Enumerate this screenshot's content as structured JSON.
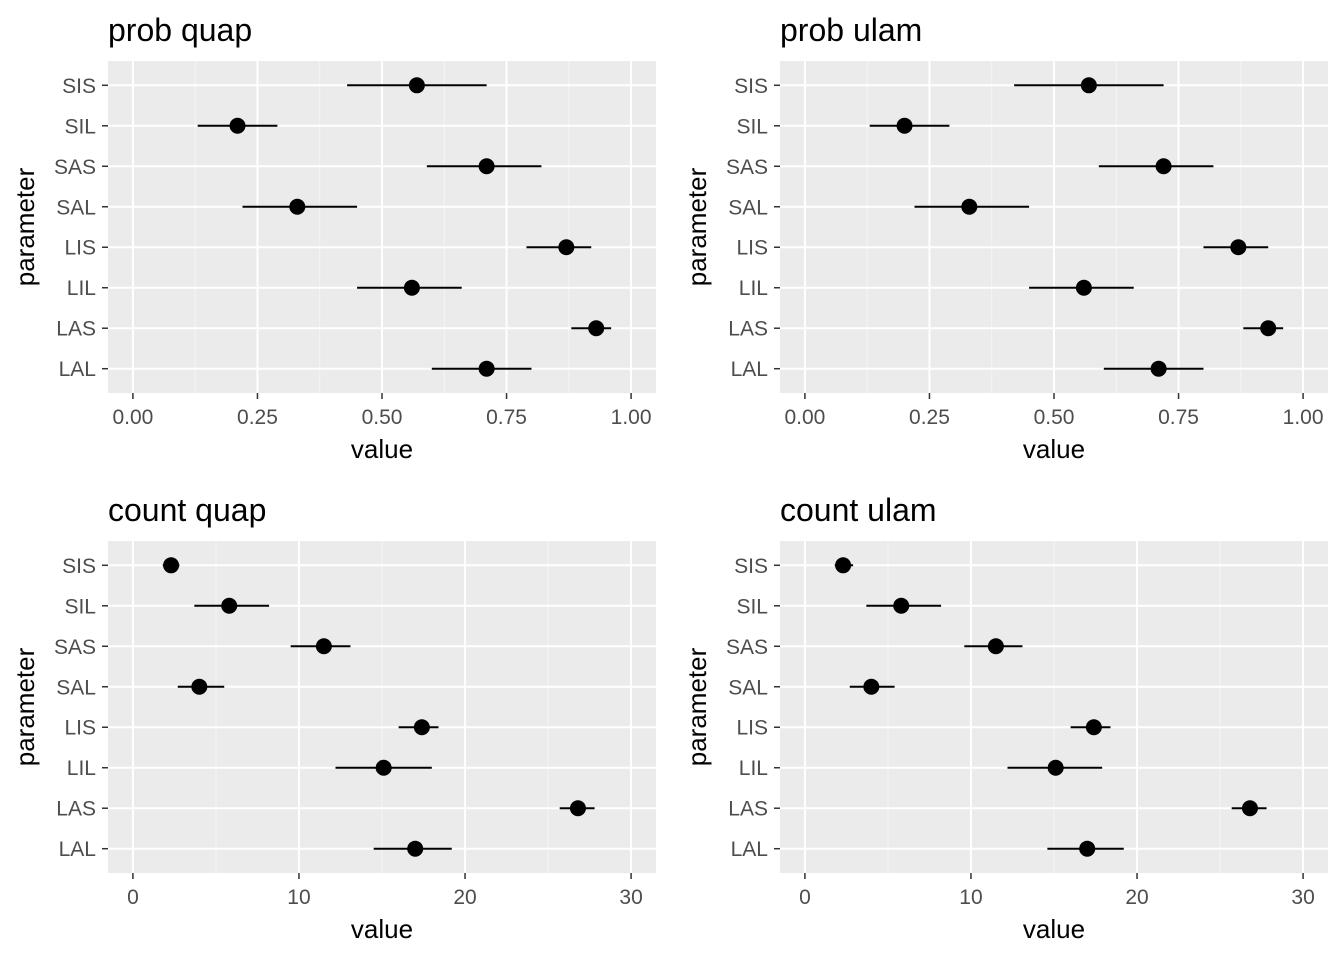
{
  "chart_data": [
    {
      "type": "scatter",
      "title": "prob quap",
      "xlabel": "value",
      "ylabel": "parameter",
      "xlim": [
        -0.05,
        1.05
      ],
      "xticks": [
        0,
        0.25,
        0.5,
        0.75,
        1
      ],
      "xtick_labels": [
        "0.00",
        "0.25",
        "0.50",
        "0.75",
        "1.00"
      ],
      "categories": [
        "SIS",
        "SIL",
        "SAS",
        "SAL",
        "LIS",
        "LIL",
        "LAS",
        "LAL"
      ],
      "estimates": [
        0.57,
        0.21,
        0.71,
        0.33,
        0.87,
        0.56,
        0.93,
        0.71
      ],
      "lower": [
        0.43,
        0.13,
        0.59,
        0.22,
        0.79,
        0.45,
        0.88,
        0.6
      ],
      "upper": [
        0.71,
        0.29,
        0.82,
        0.45,
        0.92,
        0.66,
        0.96,
        0.8
      ],
      "grid": true
    },
    {
      "type": "scatter",
      "title": "prob ulam",
      "xlabel": "value",
      "ylabel": "parameter",
      "xlim": [
        -0.05,
        1.05
      ],
      "xticks": [
        0,
        0.25,
        0.5,
        0.75,
        1
      ],
      "xtick_labels": [
        "0.00",
        "0.25",
        "0.50",
        "0.75",
        "1.00"
      ],
      "categories": [
        "SIS",
        "SIL",
        "SAS",
        "SAL",
        "LIS",
        "LIL",
        "LAS",
        "LAL"
      ],
      "estimates": [
        0.57,
        0.2,
        0.72,
        0.33,
        0.87,
        0.56,
        0.93,
        0.71
      ],
      "lower": [
        0.42,
        0.13,
        0.59,
        0.22,
        0.8,
        0.45,
        0.88,
        0.6
      ],
      "upper": [
        0.72,
        0.29,
        0.82,
        0.45,
        0.93,
        0.66,
        0.96,
        0.8
      ],
      "grid": true
    },
    {
      "type": "scatter",
      "title": "count quap",
      "xlabel": "value",
      "ylabel": "parameter",
      "xlim": [
        -1.5,
        31.5
      ],
      "xticks": [
        0,
        10,
        20,
        30
      ],
      "xtick_labels": [
        "0",
        "10",
        "20",
        "30"
      ],
      "categories": [
        "SIS",
        "SIL",
        "SAS",
        "SAL",
        "LIS",
        "LIL",
        "LAS",
        "LAL"
      ],
      "estimates": [
        2.3,
        5.8,
        11.5,
        4.0,
        17.4,
        15.1,
        26.8,
        17.0
      ],
      "lower": [
        1.8,
        3.7,
        9.5,
        2.7,
        16.0,
        12.2,
        25.7,
        14.5
      ],
      "upper": [
        2.8,
        8.2,
        13.1,
        5.5,
        18.4,
        18.0,
        27.8,
        19.2
      ],
      "grid": true
    },
    {
      "type": "scatter",
      "title": "count ulam",
      "xlabel": "value",
      "ylabel": "parameter",
      "xlim": [
        -1.5,
        31.5
      ],
      "xticks": [
        0,
        10,
        20,
        30
      ],
      "xtick_labels": [
        "0",
        "10",
        "20",
        "30"
      ],
      "categories": [
        "SIS",
        "SIL",
        "SAS",
        "SAL",
        "LIS",
        "LIL",
        "LAS",
        "LAL"
      ],
      "estimates": [
        2.3,
        5.8,
        11.5,
        4.0,
        17.4,
        15.1,
        26.8,
        17.0
      ],
      "lower": [
        1.8,
        3.7,
        9.6,
        2.7,
        16.0,
        12.2,
        25.7,
        14.6
      ],
      "upper": [
        2.9,
        8.2,
        13.1,
        5.4,
        18.4,
        17.9,
        27.8,
        19.2
      ],
      "grid": true
    }
  ],
  "colors": {
    "panel_background": "#ebebeb",
    "grid_major": "#ffffff",
    "grid_minor": "#f5f5f5",
    "point": "#000000",
    "interval": "#000000",
    "tick_text": "#4d4d4d"
  }
}
